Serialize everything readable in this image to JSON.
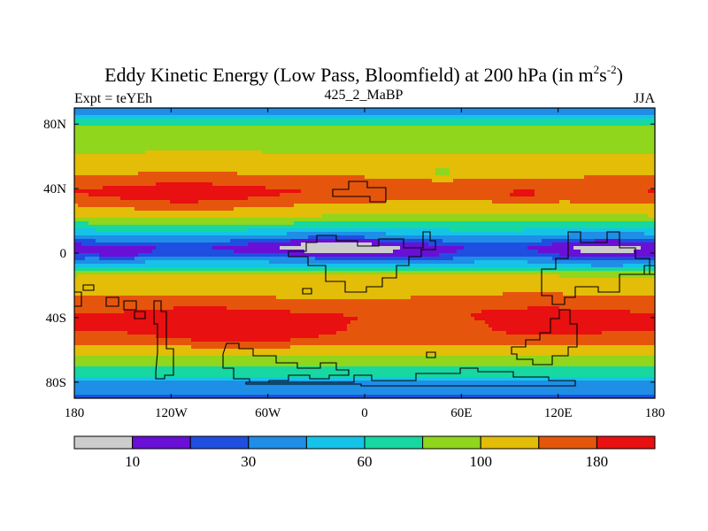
{
  "chart_data": {
    "type": "heatmap",
    "title": {
      "prefix": "Eddy Kinetic Energy (Low Pass, Bloomfield) at 200 hPa (in m",
      "sup1": "2",
      "mid": "s",
      "sup2": "-2",
      "suffix": ")"
    },
    "left_label": "Expt = teYEh",
    "center_label": "425_2_MaBP",
    "right_label": "JJA",
    "x_ticks": [
      {
        "value": -180,
        "label": "180"
      },
      {
        "value": -120,
        "label": "120W"
      },
      {
        "value": -60,
        "label": "60W"
      },
      {
        "value": 0,
        "label": "0"
      },
      {
        "value": 60,
        "label": "60E"
      },
      {
        "value": 120,
        "label": "120E"
      },
      {
        "value": 180,
        "label": "180"
      }
    ],
    "y_ticks": [
      {
        "value": 80,
        "label": "80N"
      },
      {
        "value": 40,
        "label": "40N"
      },
      {
        "value": 0,
        "label": "0"
      },
      {
        "value": -40,
        "label": "40S"
      },
      {
        "value": -80,
        "label": "80S"
      }
    ],
    "x_range": [
      -180,
      180
    ],
    "y_range": [
      -90,
      90
    ],
    "units": "m2 s-2",
    "levels": [
      0,
      10,
      20,
      30,
      45,
      60,
      80,
      100,
      140,
      180,
      240
    ],
    "colorbar": {
      "colors": [
        "#cccccc",
        "#6a0fd6",
        "#1f4fe0",
        "#1e8ee6",
        "#16c3e8",
        "#16d8a0",
        "#8fd61c",
        "#e3bd07",
        "#e5560c",
        "#e81010"
      ],
      "labels": [
        {
          "boundary": 1,
          "text": "10"
        },
        {
          "boundary": 3,
          "text": "30"
        },
        {
          "boundary": 5,
          "text": "60"
        },
        {
          "boundary": 7,
          "text": "100"
        },
        {
          "boundary": 9,
          "text": "180"
        }
      ]
    },
    "zonal_mean_profile": {
      "lat": [
        90,
        86,
        80,
        74,
        68,
        62,
        56,
        50,
        44,
        38,
        32,
        26,
        20,
        14,
        8,
        4,
        0,
        -4,
        -8,
        -12,
        -16,
        -20,
        -24,
        -28,
        -32,
        -36,
        -40,
        -44,
        -48,
        -52,
        -56,
        -60,
        -64,
        -68,
        -72,
        -76,
        -80,
        -84,
        -88,
        -90
      ],
      "value": [
        25,
        45,
        75,
        95,
        80,
        95,
        120,
        130,
        150,
        170,
        140,
        110,
        85,
        60,
        35,
        22,
        25,
        40,
        60,
        95,
        110,
        120,
        130,
        140,
        150,
        170,
        190,
        185,
        175,
        160,
        140,
        120,
        100,
        85,
        75,
        60,
        45,
        40,
        30,
        20
      ]
    },
    "anomalies": [
      {
        "lon": -112,
        "lat": 35,
        "width": 45,
        "height": 8,
        "amplitude": 45
      },
      {
        "lon": 48,
        "lat": 50,
        "width": 10,
        "height": 3,
        "amplitude": -35
      },
      {
        "lon": 98,
        "lat": 35,
        "width": 8,
        "height": 3,
        "amplitude": 30
      },
      {
        "lon": -18,
        "lat": 5,
        "width": 38,
        "height": 6,
        "amplitude": -20
      },
      {
        "lon": 150,
        "lat": 0,
        "width": 25,
        "height": 12,
        "amplitude": -18
      },
      {
        "lon": 30,
        "lat": -5,
        "width": 20,
        "height": 4,
        "amplitude": -14
      },
      {
        "lon": -150,
        "lat": 0,
        "width": 12,
        "height": 4,
        "amplitude": -12
      },
      {
        "lon": -70,
        "lat": -48,
        "width": 30,
        "height": 6,
        "amplitude": 60
      },
      {
        "lon": -105,
        "lat": -42,
        "width": 28,
        "height": 8,
        "amplitude": 35
      },
      {
        "lon": 110,
        "lat": -40,
        "width": 40,
        "height": 10,
        "amplitude": 25
      },
      {
        "lon": 40,
        "lat": -43,
        "width": 30,
        "height": 4,
        "amplitude": -45
      },
      {
        "lon": -100,
        "lat": 60,
        "width": 30,
        "height": 5,
        "amplitude": 15
      }
    ]
  }
}
